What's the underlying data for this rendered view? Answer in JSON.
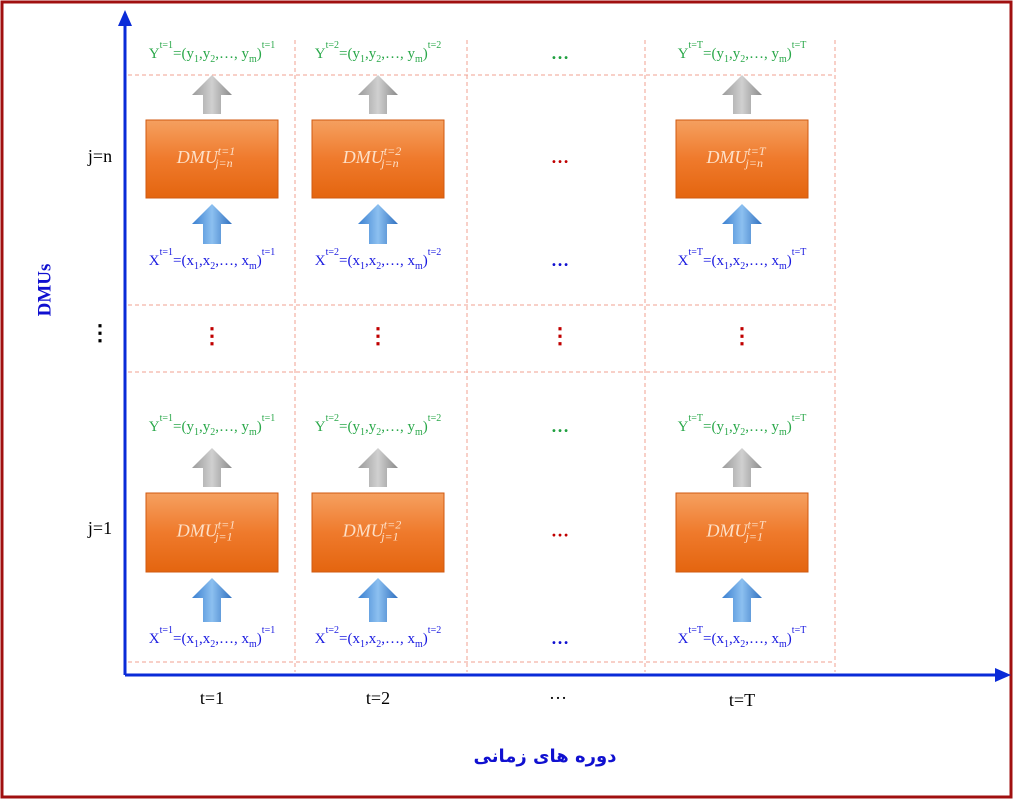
{
  "y_axis": {
    "title": "DMUs",
    "rows": [
      "j=n",
      "⋮",
      "j=1"
    ]
  },
  "x_axis": {
    "title": "دوره های زمانی",
    "periods": [
      "t=1",
      "t=2",
      "…",
      "t=T"
    ]
  },
  "cells": {
    "top": [
      {
        "output": [
          "Y",
          "t=1",
          "=(y",
          "1",
          ",y",
          "2",
          ",…, y",
          "m",
          ")",
          "t=1"
        ],
        "dmu": [
          "DMU",
          "t=1",
          "j=n"
        ],
        "input": [
          "X",
          "t=1",
          "=(x",
          "1",
          ",x",
          "2",
          ",…, x",
          "m",
          ")",
          "t=1"
        ]
      },
      {
        "output": [
          "Y",
          "t=2",
          "=(y",
          "1",
          ",y",
          "2",
          ",…, y",
          "m",
          ")",
          "t=2"
        ],
        "dmu": [
          "DMU",
          "t=2",
          "j=n"
        ],
        "input": [
          "X",
          "t=2",
          "=(x",
          "1",
          ",x",
          "2",
          ",…, x",
          "m",
          ")",
          "t=2"
        ]
      },
      {
        "output": "…",
        "dmu": "…",
        "input": "…"
      },
      {
        "output": [
          "Y",
          "t=T",
          "=(y",
          "1",
          ",y",
          "2",
          ",…, y",
          "m",
          ")",
          "t=T"
        ],
        "dmu": [
          "DMU",
          "t=T",
          "j=n"
        ],
        "input": [
          "X",
          "t=T",
          "=(x",
          "1",
          ",x",
          "2",
          ",…, x",
          "m",
          ")",
          "t=T"
        ]
      }
    ],
    "middle": [
      "⋮",
      "⋮",
      "⋮",
      "⋮"
    ],
    "bottom": [
      {
        "output": [
          "Y",
          "t=1",
          "=(y",
          "1",
          ",y",
          "2",
          ",…, y",
          "m",
          ")",
          "t=1"
        ],
        "dmu": [
          "DMU",
          "t=1",
          "j=1"
        ],
        "input": [
          "X",
          "t=1",
          "=(x",
          "1",
          ",x",
          "2",
          ",…, x",
          "m",
          ")",
          "t=1"
        ]
      },
      {
        "output": [
          "Y",
          "t=2",
          "=(y",
          "1",
          ",y",
          "2",
          ",…, y",
          "m",
          ")",
          "t=2"
        ],
        "dmu": [
          "DMU",
          "t=2",
          "j=1"
        ],
        "input": [
          "X",
          "t=2",
          "=(x",
          "1",
          ",x",
          "2",
          ",…, x",
          "m",
          ")",
          "t=2"
        ]
      },
      {
        "output": "…",
        "dmu": "…",
        "input": "…"
      },
      {
        "output": [
          "Y",
          "t=T",
          "=(y",
          "1",
          ",y",
          "2",
          ",…, y",
          "m",
          ")",
          "t=T"
        ],
        "dmu": [
          "DMU",
          "t=T",
          "j=1"
        ],
        "input": [
          "X",
          "t=T",
          "=(x",
          "1",
          ",x",
          "2",
          ",…, x",
          "m",
          ")",
          "t=T"
        ]
      }
    ]
  }
}
